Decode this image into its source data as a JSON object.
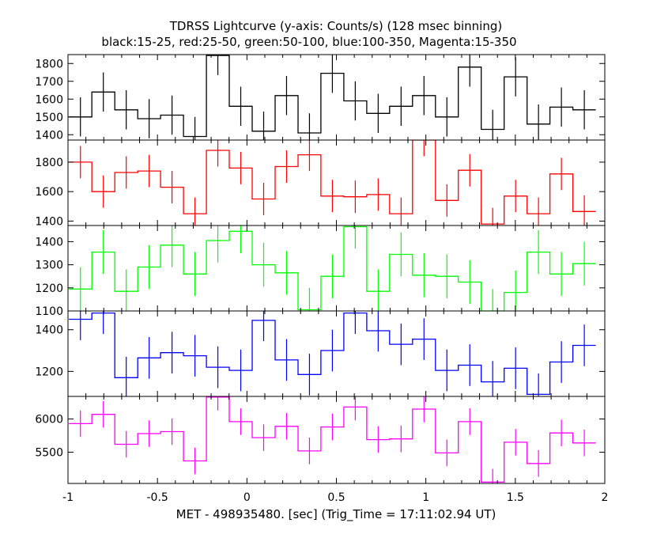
{
  "title": "TDRSS Lightcurve (y-axis: Counts/s) (128 msec binning)",
  "subtitle": "black:15-25, red:25-50, green:50-100, blue:100-350, Magenta:15-350",
  "xlabel": "MET - 498935480. [sec] (Trig_Time = 17:11:02.94 UT)",
  "chart_data": {
    "type": "line",
    "step": true,
    "xlim": [
      -1,
      2
    ],
    "x_tick_labels": [
      "-1",
      "-0.5",
      "0",
      "0.5",
      "1",
      "1.5",
      "2"
    ],
    "x_ticks": [
      -1,
      -0.5,
      0,
      0.5,
      1,
      1.5,
      2
    ],
    "bin_width": 0.128,
    "bin_centers": [
      -0.9305,
      -0.8025,
      -0.6745,
      -0.5465,
      -0.4185,
      -0.2905,
      -0.1625,
      -0.0345,
      0.0935,
      0.2215,
      0.3495,
      0.4775,
      0.6055,
      0.7335,
      0.8615,
      0.9895,
      1.1175,
      1.2455,
      1.3735,
      1.5015,
      1.6295,
      1.7575,
      1.8855
    ],
    "panels": [
      {
        "name": "black:15-25",
        "color": "#000000",
        "ylim": [
          1370,
          1850
        ],
        "y_ticks": [
          1400,
          1500,
          1600,
          1700,
          1800
        ],
        "values": [
          1500,
          1640,
          1540,
          1490,
          1510,
          1390,
          1845,
          1560,
          1420,
          1620,
          1410,
          1745,
          1590,
          1520,
          1560,
          1620,
          1500,
          1780,
          1430,
          1725,
          1460,
          1555,
          1540
        ],
        "errors": [
          110,
          110,
          110,
          110,
          110,
          110,
          110,
          110,
          110,
          110,
          110,
          110,
          110,
          110,
          110,
          110,
          110,
          110,
          110,
          110,
          110,
          110,
          110
        ]
      },
      {
        "name": "red:25-50",
        "color": "#ff0000",
        "ylim": [
          1370,
          1950
        ],
        "y_ticks": [
          1400,
          1600,
          1800
        ],
        "values": [
          1800,
          1600,
          1730,
          1740,
          1630,
          1450,
          1880,
          1760,
          1550,
          1770,
          1850,
          1570,
          1565,
          1580,
          1450,
          1950,
          1540,
          1745,
          1380,
          1570,
          1450,
          1720,
          1465
        ],
        "errors": [
          110,
          110,
          110,
          110,
          110,
          110,
          110,
          110,
          110,
          110,
          110,
          110,
          110,
          110,
          110,
          110,
          110,
          110,
          110,
          110,
          110,
          110,
          110
        ]
      },
      {
        "name": "green:50-100",
        "color": "#00ff00",
        "ylim": [
          1100,
          1470
        ],
        "y_ticks": [
          1100,
          1200,
          1300,
          1400
        ],
        "values": [
          1195,
          1355,
          1185,
          1290,
          1385,
          1260,
          1405,
          1445,
          1300,
          1265,
          1105,
          1250,
          1465,
          1185,
          1345,
          1255,
          1250,
          1225,
          1100,
          1180,
          1355,
          1260,
          1305
        ],
        "errors": [
          95,
          95,
          95,
          95,
          95,
          95,
          95,
          95,
          95,
          95,
          95,
          95,
          95,
          95,
          95,
          95,
          95,
          95,
          95,
          95,
          95,
          95,
          95
        ]
      },
      {
        "name": "blue:100-350",
        "color": "#0000ff",
        "ylim": [
          1080,
          1490
        ],
        "y_ticks": [
          1200,
          1400
        ],
        "values": [
          1450,
          1480,
          1170,
          1265,
          1290,
          1275,
          1220,
          1205,
          1445,
          1255,
          1185,
          1300,
          1480,
          1395,
          1330,
          1355,
          1205,
          1230,
          1150,
          1215,
          1090,
          1245,
          1325
        ],
        "errors": [
          100,
          100,
          100,
          100,
          100,
          100,
          100,
          100,
          100,
          100,
          100,
          100,
          100,
          100,
          100,
          100,
          100,
          100,
          100,
          100,
          100,
          100,
          100
        ]
      },
      {
        "name": "Magenta:15-350",
        "color": "#ff00ff",
        "ylim": [
          5030,
          6340
        ],
        "y_ticks": [
          5500,
          6000
        ],
        "values": [
          5930,
          6070,
          5620,
          5780,
          5810,
          5370,
          6330,
          5960,
          5720,
          5890,
          5520,
          5880,
          6180,
          5690,
          5700,
          6150,
          5490,
          5960,
          5050,
          5650,
          5330,
          5790,
          5640
        ],
        "errors": [
          200,
          200,
          200,
          200,
          200,
          200,
          200,
          200,
          200,
          200,
          200,
          200,
          200,
          200,
          200,
          200,
          200,
          200,
          200,
          200,
          200,
          200,
          200
        ]
      }
    ]
  }
}
